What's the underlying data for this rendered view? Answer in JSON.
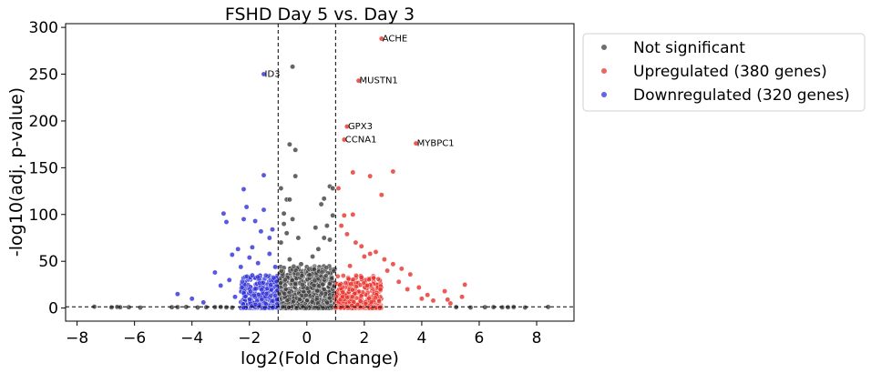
{
  "chart_data": {
    "type": "scatter",
    "title": "FSHD Day 5 vs. Day 3",
    "xlabel": "log2(Fold Change)",
    "ylabel": "-log10(adj. p-value)",
    "xlim": [
      -8.4,
      9.3
    ],
    "ylim": [
      -14,
      304
    ],
    "xticks": [
      -8,
      -6,
      -4,
      -2,
      0,
      2,
      4,
      6,
      8
    ],
    "xtick_labels": [
      "−8",
      "−6",
      "−4",
      "−2",
      "0",
      "2",
      "4",
      "6",
      "8"
    ],
    "yticks": [
      0,
      50,
      100,
      150,
      200,
      250,
      300
    ],
    "ytick_labels": [
      "0",
      "50",
      "100",
      "150",
      "200",
      "250",
      "300"
    ],
    "thresholds": {
      "log2fc": [
        -1,
        1
      ],
      "neg_log10_p": 1.3
    },
    "legend": {
      "position": "outside-top-right",
      "entries": [
        "Not significant",
        "Upregulated (380 genes)",
        "Downregulated (320 genes)"
      ]
    },
    "colors": {
      "not_significant": "#3f3f3f",
      "upregulated": "#e8302a",
      "downregulated": "#3030d8"
    },
    "series": [
      {
        "name": "Not significant",
        "points": [
          [
            -7.4,
            1.5
          ],
          [
            -6.8,
            0.8
          ],
          [
            -6.6,
            1.2
          ],
          [
            -6.5,
            0.9
          ],
          [
            -6.2,
            0.9
          ],
          [
            -5.8,
            0.5
          ],
          [
            -4.7,
            0.9
          ],
          [
            -4.5,
            1.0
          ],
          [
            -4.2,
            1.2
          ],
          [
            -3.8,
            0.6
          ],
          [
            -3.5,
            0.9
          ],
          [
            -3.2,
            1.0
          ],
          [
            -3.0,
            1.2
          ],
          [
            -2.8,
            0.8
          ],
          [
            -2.6,
            0.5
          ],
          [
            6.5,
            1.0
          ],
          [
            6.8,
            0.8
          ],
          [
            7.0,
            0.9
          ],
          [
            7.2,
            1.1
          ],
          [
            7.6,
            0.6
          ],
          [
            8.4,
            1.2
          ],
          [
            5.7,
            0.6
          ],
          [
            6.2,
            0.9
          ],
          [
            5.2,
            1.0
          ],
          [
            -0.5,
            258
          ],
          [
            -0.6,
            175
          ],
          [
            -0.4,
            169
          ],
          [
            -0.4,
            141
          ],
          [
            -0.9,
            128
          ],
          [
            -0.7,
            116
          ],
          [
            -0.6,
            116
          ],
          [
            -0.8,
            101
          ],
          [
            -0.8,
            90
          ],
          [
            -0.7,
            80
          ],
          [
            -0.5,
            95
          ],
          [
            -0.3,
            75
          ],
          [
            -0.9,
            70
          ],
          [
            0.8,
            130
          ],
          [
            0.9,
            128
          ],
          [
            0.6,
            117
          ],
          [
            0.5,
            111
          ],
          [
            0.3,
            86
          ],
          [
            0.7,
            88
          ],
          [
            0.6,
            75
          ],
          [
            0.8,
            73
          ],
          [
            0.4,
            63
          ],
          [
            0.2,
            55
          ],
          [
            -0.6,
            52
          ],
          [
            -0.2,
            47
          ],
          [
            0.9,
            99
          ]
        ],
        "cluster": {
          "x_range": [
            -1.0,
            1.0
          ],
          "y_range": [
            0,
            45
          ],
          "count": 700
        }
      },
      {
        "name": "Upregulated (380 genes)",
        "points": [
          [
            2.6,
            288
          ],
          [
            1.8,
            243
          ],
          [
            1.4,
            194
          ],
          [
            1.3,
            180
          ],
          [
            3.8,
            176
          ],
          [
            1.6,
            145
          ],
          [
            2.2,
            141
          ],
          [
            3.0,
            146
          ],
          [
            2.6,
            121
          ],
          [
            1.1,
            128
          ],
          [
            1.3,
            99
          ],
          [
            1.6,
            100
          ],
          [
            1.2,
            88
          ],
          [
            1.4,
            79
          ],
          [
            1.7,
            70
          ],
          [
            1.9,
            66
          ],
          [
            2.2,
            58
          ],
          [
            2.4,
            60
          ],
          [
            2.7,
            52
          ],
          [
            3.0,
            47
          ],
          [
            3.3,
            42
          ],
          [
            3.6,
            36
          ],
          [
            2.8,
            40
          ],
          [
            3.9,
            22
          ],
          [
            4.2,
            14
          ],
          [
            4.8,
            18
          ],
          [
            5.4,
            12
          ],
          [
            5.5,
            25
          ],
          [
            4.9,
            9
          ],
          [
            5.0,
            5
          ],
          [
            4.4,
            8
          ],
          [
            3.5,
            20
          ],
          [
            3.2,
            28
          ],
          [
            1.9,
            33
          ],
          [
            2.1,
            24
          ],
          [
            1.5,
            45
          ],
          [
            2.0,
            55
          ],
          [
            4.0,
            10
          ]
        ],
        "cluster": {
          "x_range": [
            1.0,
            2.6
          ],
          "y_range": [
            0,
            35
          ],
          "count": 330
        }
      },
      {
        "name": "Downregulated (320 genes)",
        "points": [
          [
            -1.5,
            250
          ],
          [
            -1.5,
            142
          ],
          [
            -2.2,
            127
          ],
          [
            -2.1,
            108
          ],
          [
            -1.8,
            93
          ],
          [
            -1.5,
            105
          ],
          [
            -2.9,
            101
          ],
          [
            -2.8,
            92
          ],
          [
            -2.2,
            95
          ],
          [
            -1.3,
            75
          ],
          [
            -1.9,
            65
          ],
          [
            -2.4,
            63
          ],
          [
            -2.6,
            57
          ],
          [
            -2.0,
            54
          ],
          [
            -1.7,
            48
          ],
          [
            -2.3,
            44
          ],
          [
            -3.2,
            38
          ],
          [
            -3.0,
            24
          ],
          [
            -2.7,
            30
          ],
          [
            -1.2,
            84
          ],
          [
            -1.6,
            82
          ],
          [
            -4.5,
            15
          ],
          [
            -4.0,
            10
          ],
          [
            -3.6,
            6
          ],
          [
            -2.5,
            12
          ],
          [
            -1.9,
            35
          ],
          [
            -1.3,
            58
          ],
          [
            -1.1,
            44
          ]
        ],
        "cluster": {
          "x_range": [
            -2.3,
            -1.0
          ],
          "y_range": [
            0,
            35
          ],
          "count": 280
        }
      }
    ],
    "annotations": [
      {
        "label": "ACHE",
        "x": 2.6,
        "y": 288
      },
      {
        "label": "ID3",
        "x": -1.5,
        "y": 250
      },
      {
        "label": "MUSTN1",
        "x": 1.8,
        "y": 243
      },
      {
        "label": "GPX3",
        "x": 1.4,
        "y": 194
      },
      {
        "label": "CCNA1",
        "x": 1.3,
        "y": 180
      },
      {
        "label": "MYBPC1",
        "x": 3.8,
        "y": 176
      }
    ]
  }
}
